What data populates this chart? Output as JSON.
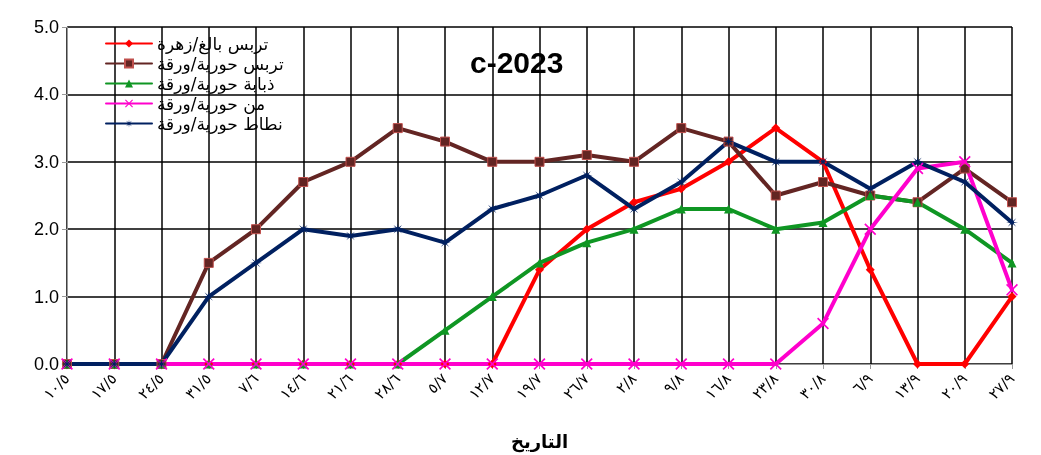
{
  "chart_data": {
    "type": "line",
    "title": "c-2023",
    "xlabel": "التاريخ",
    "categories": [
      "١٠/٥",
      "١٧/٥",
      "٢٤/٥",
      "٣١/٥",
      "٧/٦",
      "١٤/٦",
      "٢١/٦",
      "٢٨/٦",
      "٥/٧",
      "١٢/٧",
      "١٩/٧",
      "٢٦/٧",
      "٢/٨",
      "٩/٨",
      "١٦/٨",
      "٢٣/٨",
      "٣٠/٨",
      "٦/٩",
      "١٣/٩",
      "٢٠/٩",
      "٢٧/٩"
    ],
    "series": [
      {
        "name": "تربس بالغ/زهرة",
        "color": "#ff0000",
        "marker": "diamond",
        "values": [
          null,
          null,
          0,
          0,
          0,
          0,
          0,
          0,
          0,
          0,
          1.4,
          2.0,
          2.4,
          2.6,
          3.0,
          3.5,
          3.0,
          1.4,
          0,
          0,
          1.0
        ]
      },
      {
        "name": "تربس حورية/ورقة",
        "color": "#632523",
        "marker": "square",
        "values": [
          0,
          0,
          0,
          1.5,
          2.0,
          2.7,
          3.0,
          3.5,
          3.3,
          3.0,
          3.0,
          3.1,
          3.0,
          3.5,
          3.3,
          2.5,
          2.7,
          2.5,
          2.4,
          2.9,
          2.4
        ]
      },
      {
        "name": "ذبابة حورية/ورقة",
        "color": "#0f9623",
        "marker": "triangle",
        "values": [
          0,
          0,
          0,
          0,
          0,
          0,
          0,
          0,
          0.5,
          1.0,
          1.5,
          1.8,
          2.0,
          2.3,
          2.3,
          2.0,
          2.1,
          2.5,
          2.4,
          2.0,
          1.5
        ]
      },
      {
        "name": "من حورية/ورقة",
        "color": "#ff00cc",
        "marker": "cross",
        "values": [
          0,
          0,
          0,
          0,
          0,
          0,
          0,
          0,
          0,
          0,
          0,
          0,
          0,
          0,
          0,
          0,
          0.6,
          2.0,
          2.9,
          3.0,
          1.1
        ]
      },
      {
        "name": "نطاط حورية/ورقة",
        "color": "#002060",
        "marker": "star",
        "values": [
          0,
          0,
          0,
          1.0,
          1.5,
          2.0,
          1.9,
          2.0,
          1.8,
          2.3,
          2.5,
          2.8,
          2.3,
          2.7,
          3.3,
          3.0,
          3.0,
          2.6,
          3.0,
          2.7,
          2.1
        ]
      }
    ],
    "ylim": [
      0,
      5
    ],
    "yticks": [
      {
        "value": 0,
        "label": "0.0"
      },
      {
        "value": 1,
        "label": "1.0"
      },
      {
        "value": 2,
        "label": "2.0"
      },
      {
        "value": 3,
        "label": "3.0"
      },
      {
        "value": 4,
        "label": "4.0"
      },
      {
        "value": 5,
        "label": "5.0"
      }
    ],
    "grid": true,
    "legend": "top left",
    "line_style": "solid"
  }
}
